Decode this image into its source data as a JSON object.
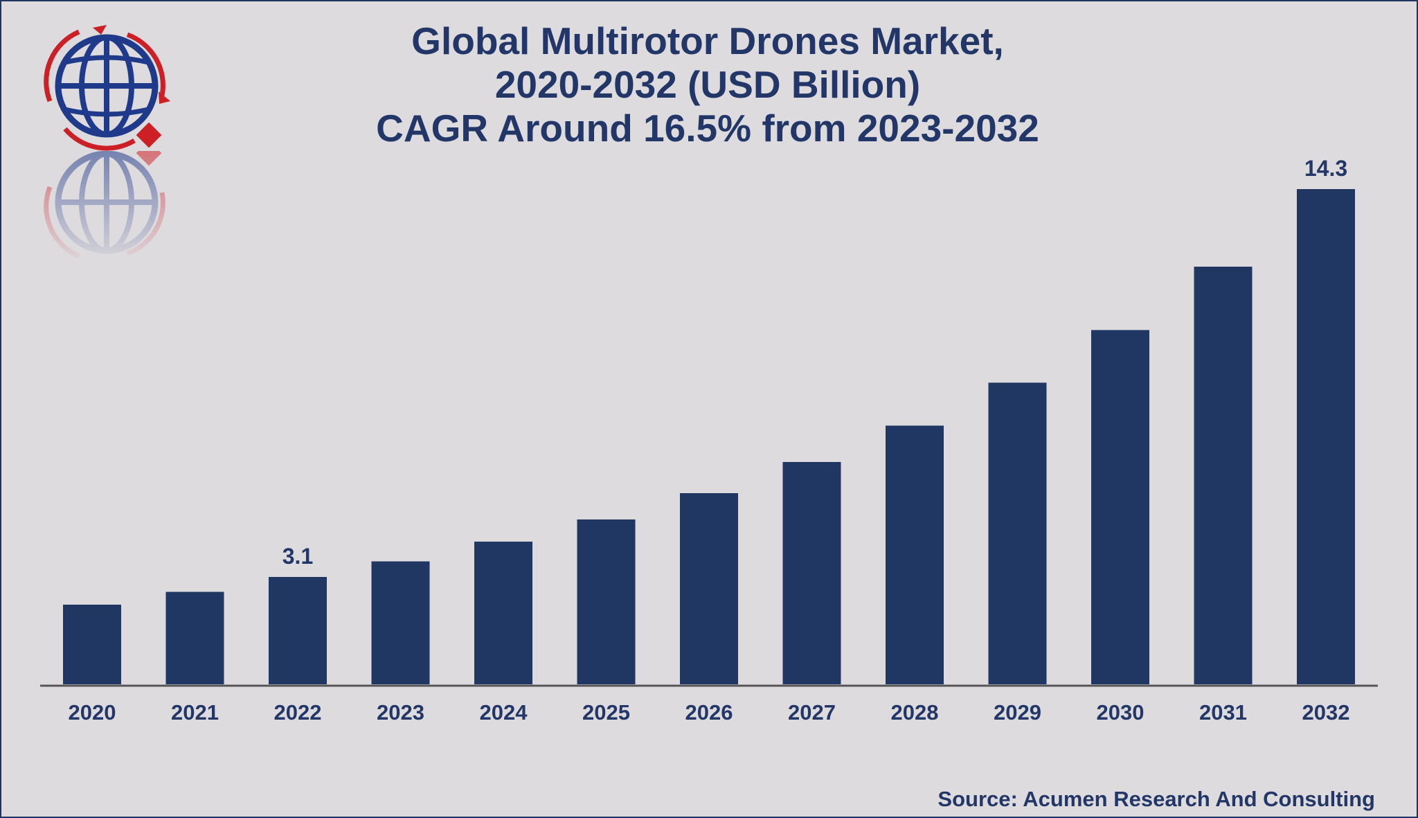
{
  "title_lines": [
    "Global Multirotor Drones Market,",
    "2020-2032 (USD Billion)",
    "CAGR Around 16.5% from 2023-2032"
  ],
  "source": "Source: Acumen Research And Consulting",
  "logo": {
    "icon": "globe-logo-icon",
    "colors": {
      "globe": "#1f3a8a",
      "arrows": "#cc1f26"
    }
  },
  "colors": {
    "bar": "#213763",
    "background": "#dedbde",
    "text": "#223767"
  },
  "chart_data": {
    "type": "bar",
    "title": "Global Multirotor Drones Market, 2020-2032 (USD Billion) CAGR Around 16.5% from 2023-2032",
    "xlabel": "",
    "ylabel": "",
    "categories": [
      "2020",
      "2021",
      "2022",
      "2023",
      "2024",
      "2025",
      "2026",
      "2027",
      "2028",
      "2029",
      "2030",
      "2031",
      "2032"
    ],
    "values": [
      2.3,
      2.67,
      3.1,
      3.55,
      4.12,
      4.76,
      5.52,
      6.42,
      7.47,
      8.71,
      10.23,
      12.06,
      14.3
    ],
    "data_labels": {
      "2022": "3.1",
      "2032": "14.3"
    },
    "ylim": [
      0,
      14.3
    ],
    "grid": false,
    "legend": "none"
  }
}
